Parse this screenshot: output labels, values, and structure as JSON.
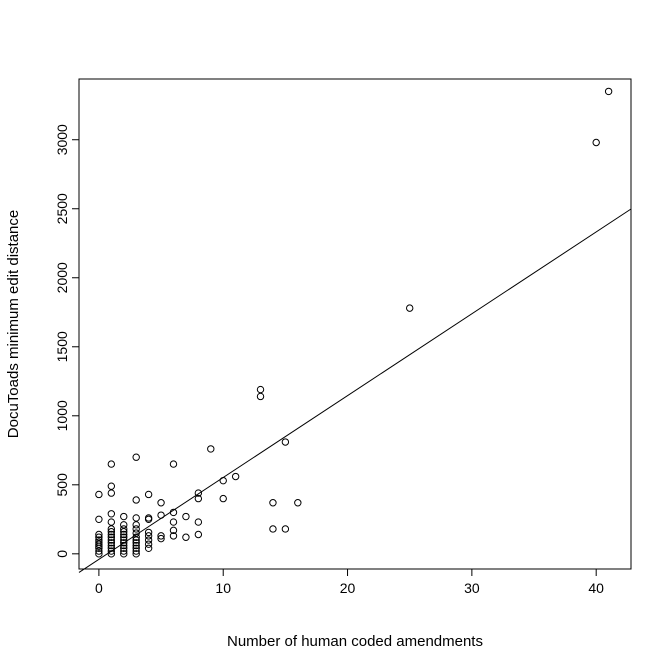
{
  "chart_data": {
    "type": "scatter",
    "title": "",
    "xlabel": "Number of human coded amendments",
    "ylabel": "DocuToads minimum edit distance",
    "xlim": [
      -1.6,
      42.8
    ],
    "ylim": [
      -110,
      3440
    ],
    "xticks": [
      0,
      10,
      20,
      30,
      40
    ],
    "yticks": [
      0,
      500,
      1000,
      1500,
      2000,
      2500,
      3000
    ],
    "grid": false,
    "legend": "none",
    "marker": "open-circle",
    "color": "#000000",
    "regression_line": {
      "intercept": -40,
      "slope": 59.3
    },
    "points": [
      {
        "x": 0,
        "y": 0
      },
      {
        "x": 0,
        "y": 20
      },
      {
        "x": 0,
        "y": 40
      },
      {
        "x": 0,
        "y": 55
      },
      {
        "x": 0,
        "y": 70
      },
      {
        "x": 0,
        "y": 85
      },
      {
        "x": 0,
        "y": 100
      },
      {
        "x": 0,
        "y": 120
      },
      {
        "x": 0,
        "y": 140
      },
      {
        "x": 0,
        "y": 250
      },
      {
        "x": 0,
        "y": 430
      },
      {
        "x": 1,
        "y": 0
      },
      {
        "x": 1,
        "y": 20
      },
      {
        "x": 1,
        "y": 40
      },
      {
        "x": 1,
        "y": 60
      },
      {
        "x": 1,
        "y": 80
      },
      {
        "x": 1,
        "y": 100
      },
      {
        "x": 1,
        "y": 120
      },
      {
        "x": 1,
        "y": 140
      },
      {
        "x": 1,
        "y": 160
      },
      {
        "x": 1,
        "y": 180
      },
      {
        "x": 1,
        "y": 230
      },
      {
        "x": 1,
        "y": 290
      },
      {
        "x": 1,
        "y": 440
      },
      {
        "x": 1,
        "y": 490
      },
      {
        "x": 1,
        "y": 650
      },
      {
        "x": 2,
        "y": 0
      },
      {
        "x": 2,
        "y": 20
      },
      {
        "x": 2,
        "y": 40
      },
      {
        "x": 2,
        "y": 60
      },
      {
        "x": 2,
        "y": 80
      },
      {
        "x": 2,
        "y": 100
      },
      {
        "x": 2,
        "y": 120
      },
      {
        "x": 2,
        "y": 140
      },
      {
        "x": 2,
        "y": 160
      },
      {
        "x": 2,
        "y": 180
      },
      {
        "x": 2,
        "y": 210
      },
      {
        "x": 2,
        "y": 270
      },
      {
        "x": 3,
        "y": 0
      },
      {
        "x": 3,
        "y": 20
      },
      {
        "x": 3,
        "y": 40
      },
      {
        "x": 3,
        "y": 60
      },
      {
        "x": 3,
        "y": 80
      },
      {
        "x": 3,
        "y": 100
      },
      {
        "x": 3,
        "y": 120
      },
      {
        "x": 3,
        "y": 150
      },
      {
        "x": 3,
        "y": 180
      },
      {
        "x": 3,
        "y": 210
      },
      {
        "x": 3,
        "y": 260
      },
      {
        "x": 3,
        "y": 390
      },
      {
        "x": 3,
        "y": 700
      },
      {
        "x": 4,
        "y": 40
      },
      {
        "x": 4,
        "y": 70
      },
      {
        "x": 4,
        "y": 100
      },
      {
        "x": 4,
        "y": 130
      },
      {
        "x": 4,
        "y": 155
      },
      {
        "x": 4,
        "y": 250
      },
      {
        "x": 4,
        "y": 260
      },
      {
        "x": 4,
        "y": 430
      },
      {
        "x": 5,
        "y": 110
      },
      {
        "x": 5,
        "y": 130
      },
      {
        "x": 5,
        "y": 280
      },
      {
        "x": 5,
        "y": 370
      },
      {
        "x": 6,
        "y": 130
      },
      {
        "x": 6,
        "y": 170
      },
      {
        "x": 6,
        "y": 230
      },
      {
        "x": 6,
        "y": 300
      },
      {
        "x": 6,
        "y": 650
      },
      {
        "x": 7,
        "y": 120
      },
      {
        "x": 7,
        "y": 270
      },
      {
        "x": 8,
        "y": 140
      },
      {
        "x": 8,
        "y": 230
      },
      {
        "x": 8,
        "y": 400
      },
      {
        "x": 8,
        "y": 440
      },
      {
        "x": 9,
        "y": 760
      },
      {
        "x": 10,
        "y": 400
      },
      {
        "x": 10,
        "y": 530
      },
      {
        "x": 11,
        "y": 560
      },
      {
        "x": 13,
        "y": 1140
      },
      {
        "x": 13,
        "y": 1190
      },
      {
        "x": 14,
        "y": 180
      },
      {
        "x": 14,
        "y": 370
      },
      {
        "x": 15,
        "y": 180
      },
      {
        "x": 15,
        "y": 810
      },
      {
        "x": 16,
        "y": 370
      },
      {
        "x": 25,
        "y": 1780
      },
      {
        "x": 40,
        "y": 2980
      },
      {
        "x": 41,
        "y": 3350
      }
    ]
  }
}
